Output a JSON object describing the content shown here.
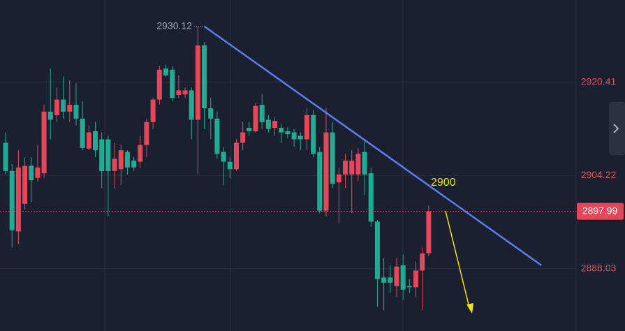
{
  "chart_data": {
    "type": "candlestick",
    "ylim": [
      2877.2,
      2934.7
    ],
    "yticks": [
      2920.41,
      2904.22,
      2888.03
    ],
    "grid": true,
    "up_color": "#e5475a",
    "down_color": "#22ab94",
    "last_price": 2897.99,
    "high_marker": 2930.12,
    "annotation": "2900",
    "trendline": {
      "x": [
        31.0,
        83.6
      ],
      "y": [
        2930.12,
        2888.6
      ],
      "color": "#5b7cf0"
    },
    "open": [
      2909.9,
      2905.0,
      2894.5,
      2899.3,
      2905.9,
      2903.8,
      2904.6,
      2915.3,
      2914.7,
      2917.4,
      2915.3,
      2916.5,
      2914.1,
      2908.9,
      2911.9,
      2910.5,
      2910.5,
      2905.0,
      2905.3,
      2908.3,
      2906.8,
      2906.6,
      2909.5,
      2913.5,
      2917.4,
      2922.8,
      2922.6,
      2918.2,
      2918.3,
      2919.0,
      2913.9,
      2926.8,
      2915.9,
      2914.1,
      2908.3,
      2906.6,
      2905.3,
      2909.9,
      2912.5,
      2911.9,
      2916.5,
      2913.9,
      2912.5,
      2912.5,
      2911.9,
      2911.7,
      2911.1,
      2910.5,
      2914.7,
      2908.3,
      2898.1,
      2911.7,
      2903.0,
      2904.4,
      2904.4,
      2904.4,
      2908.3,
      2904.6,
      2896.2,
      2886.5,
      2886.5,
      2885.0,
      2888.6,
      2885.0,
      2884.8,
      2887.7,
      2890.7
    ],
    "high": [
      2911.7,
      2906.2,
      2908.6,
      2907.4,
      2907.4,
      2909.5,
      2916.5,
      2922.8,
      2919.5,
      2921.4,
      2920.8,
      2920.2,
      2917.1,
      2912.9,
      2913.5,
      2911.7,
      2911.1,
      2909.9,
      2909.5,
      2908.6,
      2907.4,
      2911.1,
      2914.1,
      2917.7,
      2923.2,
      2923.5,
      2923.2,
      2921.6,
      2919.5,
      2919.5,
      2930.12,
      2927.4,
      2917.7,
      2915.3,
      2909.2,
      2907.4,
      2910.5,
      2913.5,
      2913.5,
      2916.8,
      2918.3,
      2914.7,
      2914.3,
      2913.1,
      2912.6,
      2912.3,
      2911.7,
      2915.9,
      2915.6,
      2909.2,
      2915.9,
      2913.5,
      2905.6,
      2908.0,
      2908.6,
      2909.0,
      2910.5,
      2905.6,
      2896.5,
      2889.9,
      2888.6,
      2889.9,
      2890.5,
      2886.2,
      2889.3,
      2891.7,
      2899.0
    ],
    "low": [
      2904.4,
      2891.7,
      2892.3,
      2898.3,
      2899.6,
      2903.2,
      2903.8,
      2910.5,
      2913.5,
      2914.1,
      2913.5,
      2912.9,
      2908.6,
      2908.6,
      2907.4,
      2902.0,
      2897.1,
      2902.0,
      2902.6,
      2904.4,
      2905.0,
      2905.6,
      2907.4,
      2912.3,
      2916.5,
      2921.4,
      2917.1,
      2917.7,
      2917.7,
      2910.5,
      2904.4,
      2912.3,
      2910.5,
      2907.1,
      2902.6,
      2903.8,
      2905.0,
      2908.6,
      2911.1,
      2911.7,
      2912.3,
      2911.7,
      2911.1,
      2909.9,
      2910.7,
      2909.2,
      2908.6,
      2908.6,
      2907.4,
      2897.7,
      2897.1,
      2902.0,
      2895.9,
      2902.0,
      2897.7,
      2903.2,
      2900.8,
      2895.3,
      2881.4,
      2880.8,
      2883.8,
      2883.2,
      2882.6,
      2883.8,
      2883.2,
      2880.8,
      2890.2
    ],
    "close": [
      2905.0,
      2894.7,
      2905.6,
      2905.9,
      2903.4,
      2905.6,
      2915.3,
      2913.9,
      2917.4,
      2915.3,
      2916.5,
      2914.1,
      2909.0,
      2911.7,
      2908.6,
      2905.0,
      2905.0,
      2907.1,
      2908.6,
      2905.6,
      2905.6,
      2909.5,
      2913.5,
      2917.4,
      2922.6,
      2921.6,
      2917.7,
      2919.0,
      2919.0,
      2913.9,
      2926.8,
      2915.9,
      2914.1,
      2908.0,
      2906.6,
      2905.3,
      2909.9,
      2911.7,
      2911.9,
      2916.3,
      2913.5,
      2912.3,
      2913.7,
      2911.7,
      2911.4,
      2910.5,
      2910.5,
      2914.7,
      2908.0,
      2898.1,
      2911.7,
      2902.8,
      2904.4,
      2906.8,
      2906.8,
      2908.0,
      2904.4,
      2896.2,
      2886.2,
      2885.6,
      2885.6,
      2888.4,
      2884.4,
      2884.8,
      2887.7,
      2890.7,
      2897.99
    ]
  }
}
